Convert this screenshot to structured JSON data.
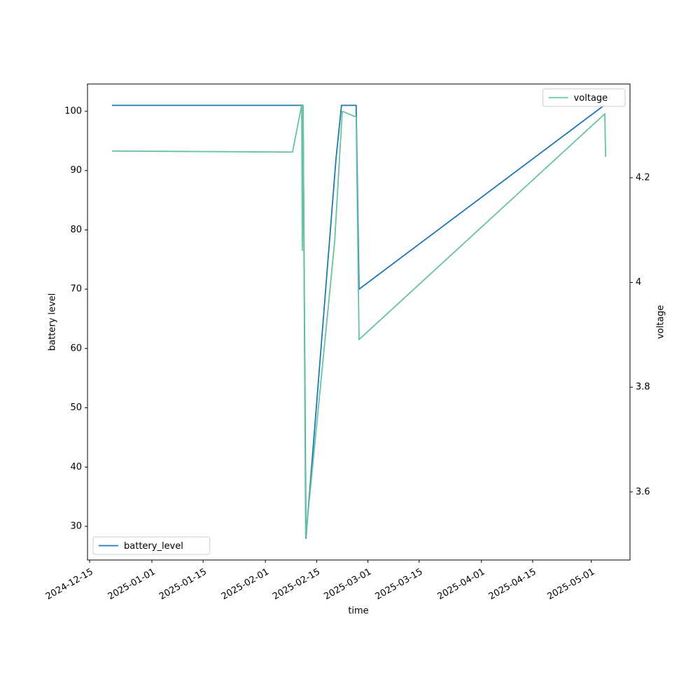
{
  "chart_data": {
    "type": "line",
    "xlabel": "time",
    "ylabel": "battery level",
    "y2label": "voltage",
    "xlim": [
      "2024-12-14T10:00",
      "2025-05-11T14:00"
    ],
    "xticks": [
      "2024-12-15",
      "2025-01-01",
      "2025-01-15",
      "2025-02-01",
      "2025-02-15",
      "2025-03-01",
      "2025-03-15",
      "2025-04-01",
      "2025-04-15",
      "2025-05-01"
    ],
    "ylim": [
      24.33,
      104.6
    ],
    "yticks": [
      30,
      40,
      50,
      60,
      70,
      80,
      90,
      100
    ],
    "y2lim": [
      3.47,
      4.379
    ],
    "y2ticks": [
      3.6,
      3.8,
      4.0,
      4.2
    ],
    "series": [
      {
        "name": "battery_level",
        "color": "#1f77b4",
        "axis": "y",
        "legend": "lower left",
        "x": [
          "2024-12-21T02:00",
          "2025-02-11T02:00",
          "2025-02-11T07:00",
          "2025-02-12T02:00",
          "2025-02-20T07:00",
          "2025-02-21T19:00",
          "2025-02-25T19:00",
          "2025-02-26T14:00",
          "2025-05-04T12:00"
        ],
        "values": [
          101,
          101,
          101,
          28,
          92,
          101,
          101,
          70,
          101
        ]
      },
      {
        "name": "voltage",
        "color": "#66c2a5",
        "axis": "y2",
        "legend": "upper right",
        "x": [
          "2024-12-21T02:00",
          "2025-02-08T10:00",
          "2025-02-10T22:00",
          "2025-02-11T02:00",
          "2025-02-11T07:00",
          "2025-02-12T00:00",
          "2025-02-19T22:00",
          "2025-02-22T00:00",
          "2025-02-25T19:00",
          "2025-02-26T14:00",
          "2025-05-04T17:00",
          "2025-05-04T22:00"
        ],
        "values": [
          4.251,
          4.249,
          4.339,
          4.061,
          4.339,
          3.513,
          4.078,
          4.327,
          4.316,
          3.891,
          4.322,
          4.24
        ]
      }
    ]
  }
}
